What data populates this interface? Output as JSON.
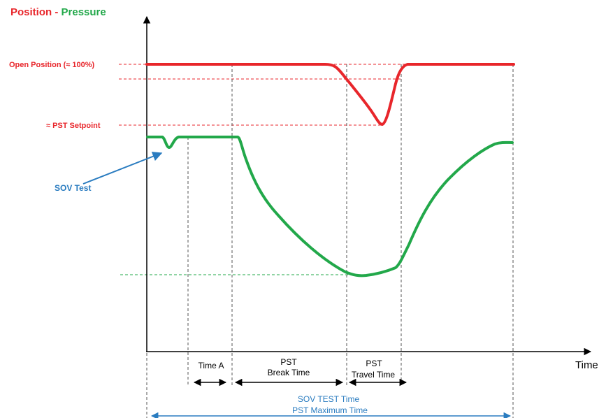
{
  "header": {
    "position_label": "Position",
    "separator": " - ",
    "pressure_label": "Pressure"
  },
  "axis": {
    "x_label": "Time"
  },
  "left_labels": {
    "open_position": "Open Position (≈ 100%)",
    "pst_setpoint": "≈ PST Setpoint",
    "sov_test": "SOV Test"
  },
  "intervals": {
    "time_a": "Time A",
    "pst_break_line1": "PST",
    "pst_break_line2": "Break Time",
    "pst_travel_line1": "PST",
    "pst_travel_line2": "Travel Time",
    "sov_test_time": "SOV TEST Time",
    "pst_maximum_time": "PST Maximum Time"
  },
  "colors": {
    "position": "#e8262b",
    "pressure": "#22a84a",
    "annotation_blue": "#2a7cc0",
    "axis": "#000000",
    "dashed_gray": "#555555"
  }
}
